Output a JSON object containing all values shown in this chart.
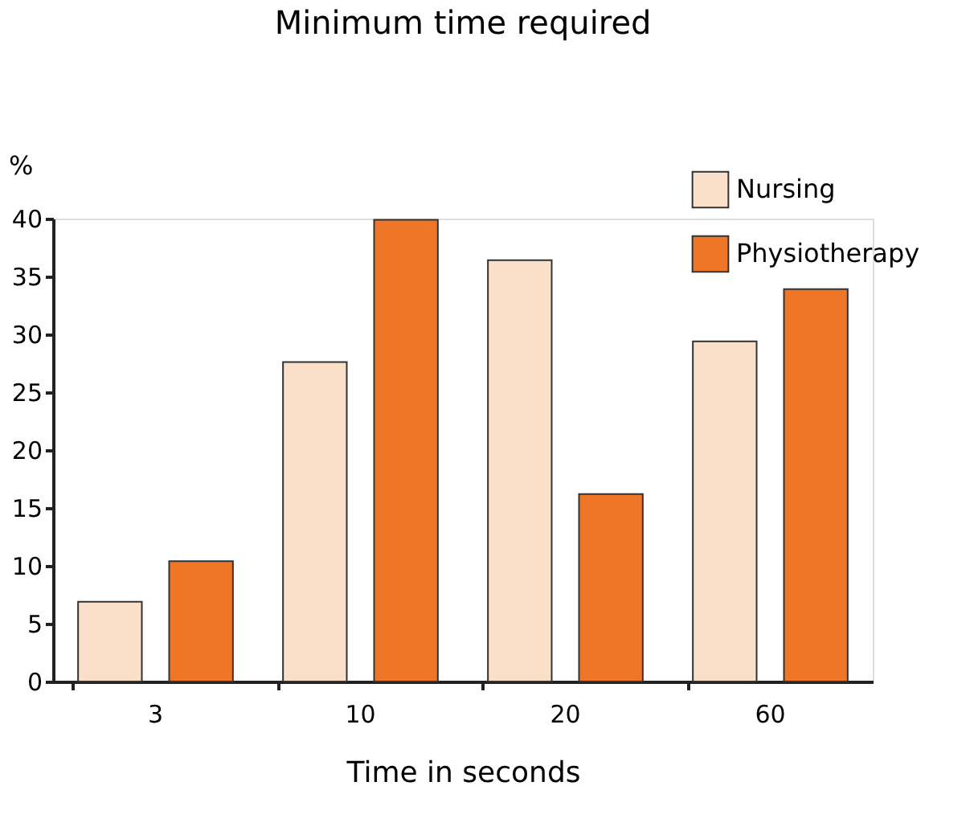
{
  "chart_data": {
    "type": "bar",
    "title": "Minimum time required",
    "xlabel": "Time in seconds",
    "ylabel": "%",
    "categories": [
      "3",
      "10",
      "20",
      "60"
    ],
    "series": [
      {
        "name": "Nursing",
        "color": "#fae0c8",
        "values": [
          6.9,
          27.6,
          36.4,
          29.4
        ]
      },
      {
        "name": "Physiotherapy",
        "color": "#ef7627",
        "values": [
          10.4,
          39.9,
          16.2,
          33.9
        ]
      }
    ],
    "ylim": [
      0,
      40
    ],
    "yticks": [
      0,
      5,
      10,
      15,
      20,
      25,
      30,
      35,
      40
    ],
    "grid": false,
    "legend": "top right"
  }
}
